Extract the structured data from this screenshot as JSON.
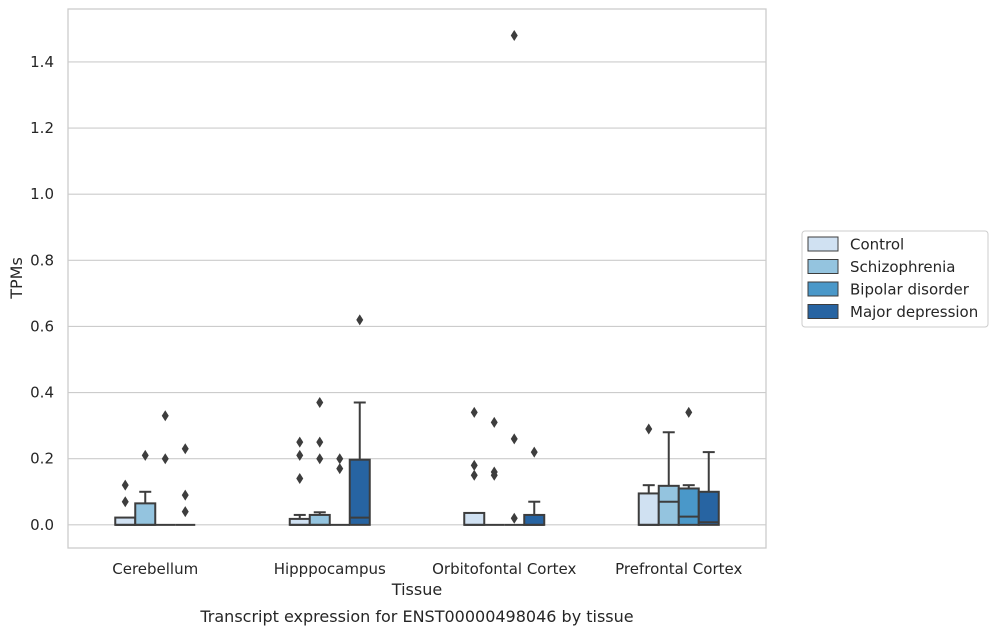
{
  "chart_data": {
    "type": "box",
    "title": "Transcript expression for ENST00000498046 by tissue",
    "xlabel": "Tissue",
    "ylabel": "TPMs",
    "ylim": [
      -0.07,
      1.56
    ],
    "yticks": [
      0.0,
      0.2,
      0.4,
      0.6,
      0.8,
      1.0,
      1.2,
      1.4
    ],
    "ytick_labels": [
      "0.0",
      "0.2",
      "0.4",
      "0.6",
      "0.8",
      "1.0",
      "1.2",
      "1.4"
    ],
    "grid": true,
    "legend_position": "right",
    "categories": [
      "Cerebellum",
      "Hipppocampus",
      "Orbitofontal Cortex",
      "Prefrontal Cortex"
    ],
    "series": [
      {
        "name": "Control",
        "color": "#d0e1f2",
        "boxes": [
          {
            "q1": 0.0,
            "median": 0.0,
            "q3": 0.022,
            "whisker_low": 0.0,
            "whisker_high": 0.022,
            "outliers": [
              0.07,
              0.12
            ]
          },
          {
            "q1": 0.0,
            "median": 0.0,
            "q3": 0.018,
            "whisker_low": 0.0,
            "whisker_high": 0.03,
            "outliers": [
              0.14,
              0.21,
              0.25
            ]
          },
          {
            "q1": 0.0,
            "median": 0.0,
            "q3": 0.036,
            "whisker_low": 0.0,
            "whisker_high": 0.036,
            "outliers": [
              0.15,
              0.18,
              0.34
            ]
          },
          {
            "q1": 0.0,
            "median": 0.0,
            "q3": 0.095,
            "whisker_low": 0.0,
            "whisker_high": 0.12,
            "outliers": [
              0.29
            ]
          }
        ]
      },
      {
        "name": "Schizophrenia",
        "color": "#94c4df",
        "boxes": [
          {
            "q1": 0.0,
            "median": 0.0,
            "q3": 0.065,
            "whisker_low": 0.0,
            "whisker_high": 0.1,
            "outliers": [
              0.21
            ]
          },
          {
            "q1": 0.0,
            "median": 0.0,
            "q3": 0.03,
            "whisker_low": 0.0,
            "whisker_high": 0.038,
            "outliers": [
              0.2,
              0.25,
              0.37
            ]
          },
          {
            "q1": 0.0,
            "median": 0.0,
            "q3": 0.0,
            "whisker_low": 0.0,
            "whisker_high": 0.0,
            "outliers": [
              0.15,
              0.16,
              0.31
            ]
          },
          {
            "q1": 0.0,
            "median": 0.07,
            "q3": 0.118,
            "whisker_low": 0.0,
            "whisker_high": 0.28,
            "outliers": []
          }
        ]
      },
      {
        "name": "Bipolar disorder",
        "color": "#4a98c9",
        "boxes": [
          {
            "q1": 0.0,
            "median": 0.0,
            "q3": 0.0,
            "whisker_low": 0.0,
            "whisker_high": 0.0,
            "outliers": [
              0.2,
              0.33
            ]
          },
          {
            "q1": 0.0,
            "median": 0.0,
            "q3": 0.0,
            "whisker_low": 0.0,
            "whisker_high": 0.0,
            "outliers": [
              0.17,
              0.2
            ]
          },
          {
            "q1": 0.0,
            "median": 0.0,
            "q3": 0.0,
            "whisker_low": 0.0,
            "whisker_high": 0.0,
            "outliers": [
              0.02,
              0.26,
              1.48
            ]
          },
          {
            "q1": 0.0,
            "median": 0.025,
            "q3": 0.11,
            "whisker_low": 0.0,
            "whisker_high": 0.12,
            "outliers": [
              0.34
            ]
          }
        ]
      },
      {
        "name": "Major depression",
        "color": "#2764a2",
        "boxes": [
          {
            "q1": 0.0,
            "median": 0.0,
            "q3": 0.0,
            "whisker_low": 0.0,
            "whisker_high": 0.0,
            "outliers": [
              0.04,
              0.09,
              0.23
            ]
          },
          {
            "q1": 0.0,
            "median": 0.022,
            "q3": 0.197,
            "whisker_low": 0.0,
            "whisker_high": 0.37,
            "outliers": [
              0.62
            ]
          },
          {
            "q1": 0.0,
            "median": 0.0,
            "q3": 0.03,
            "whisker_low": 0.0,
            "whisker_high": 0.07,
            "outliers": [
              0.22
            ]
          },
          {
            "q1": 0.0,
            "median": 0.008,
            "q3": 0.1,
            "whisker_low": 0.0,
            "whisker_high": 0.22,
            "outliers": []
          }
        ]
      }
    ]
  }
}
